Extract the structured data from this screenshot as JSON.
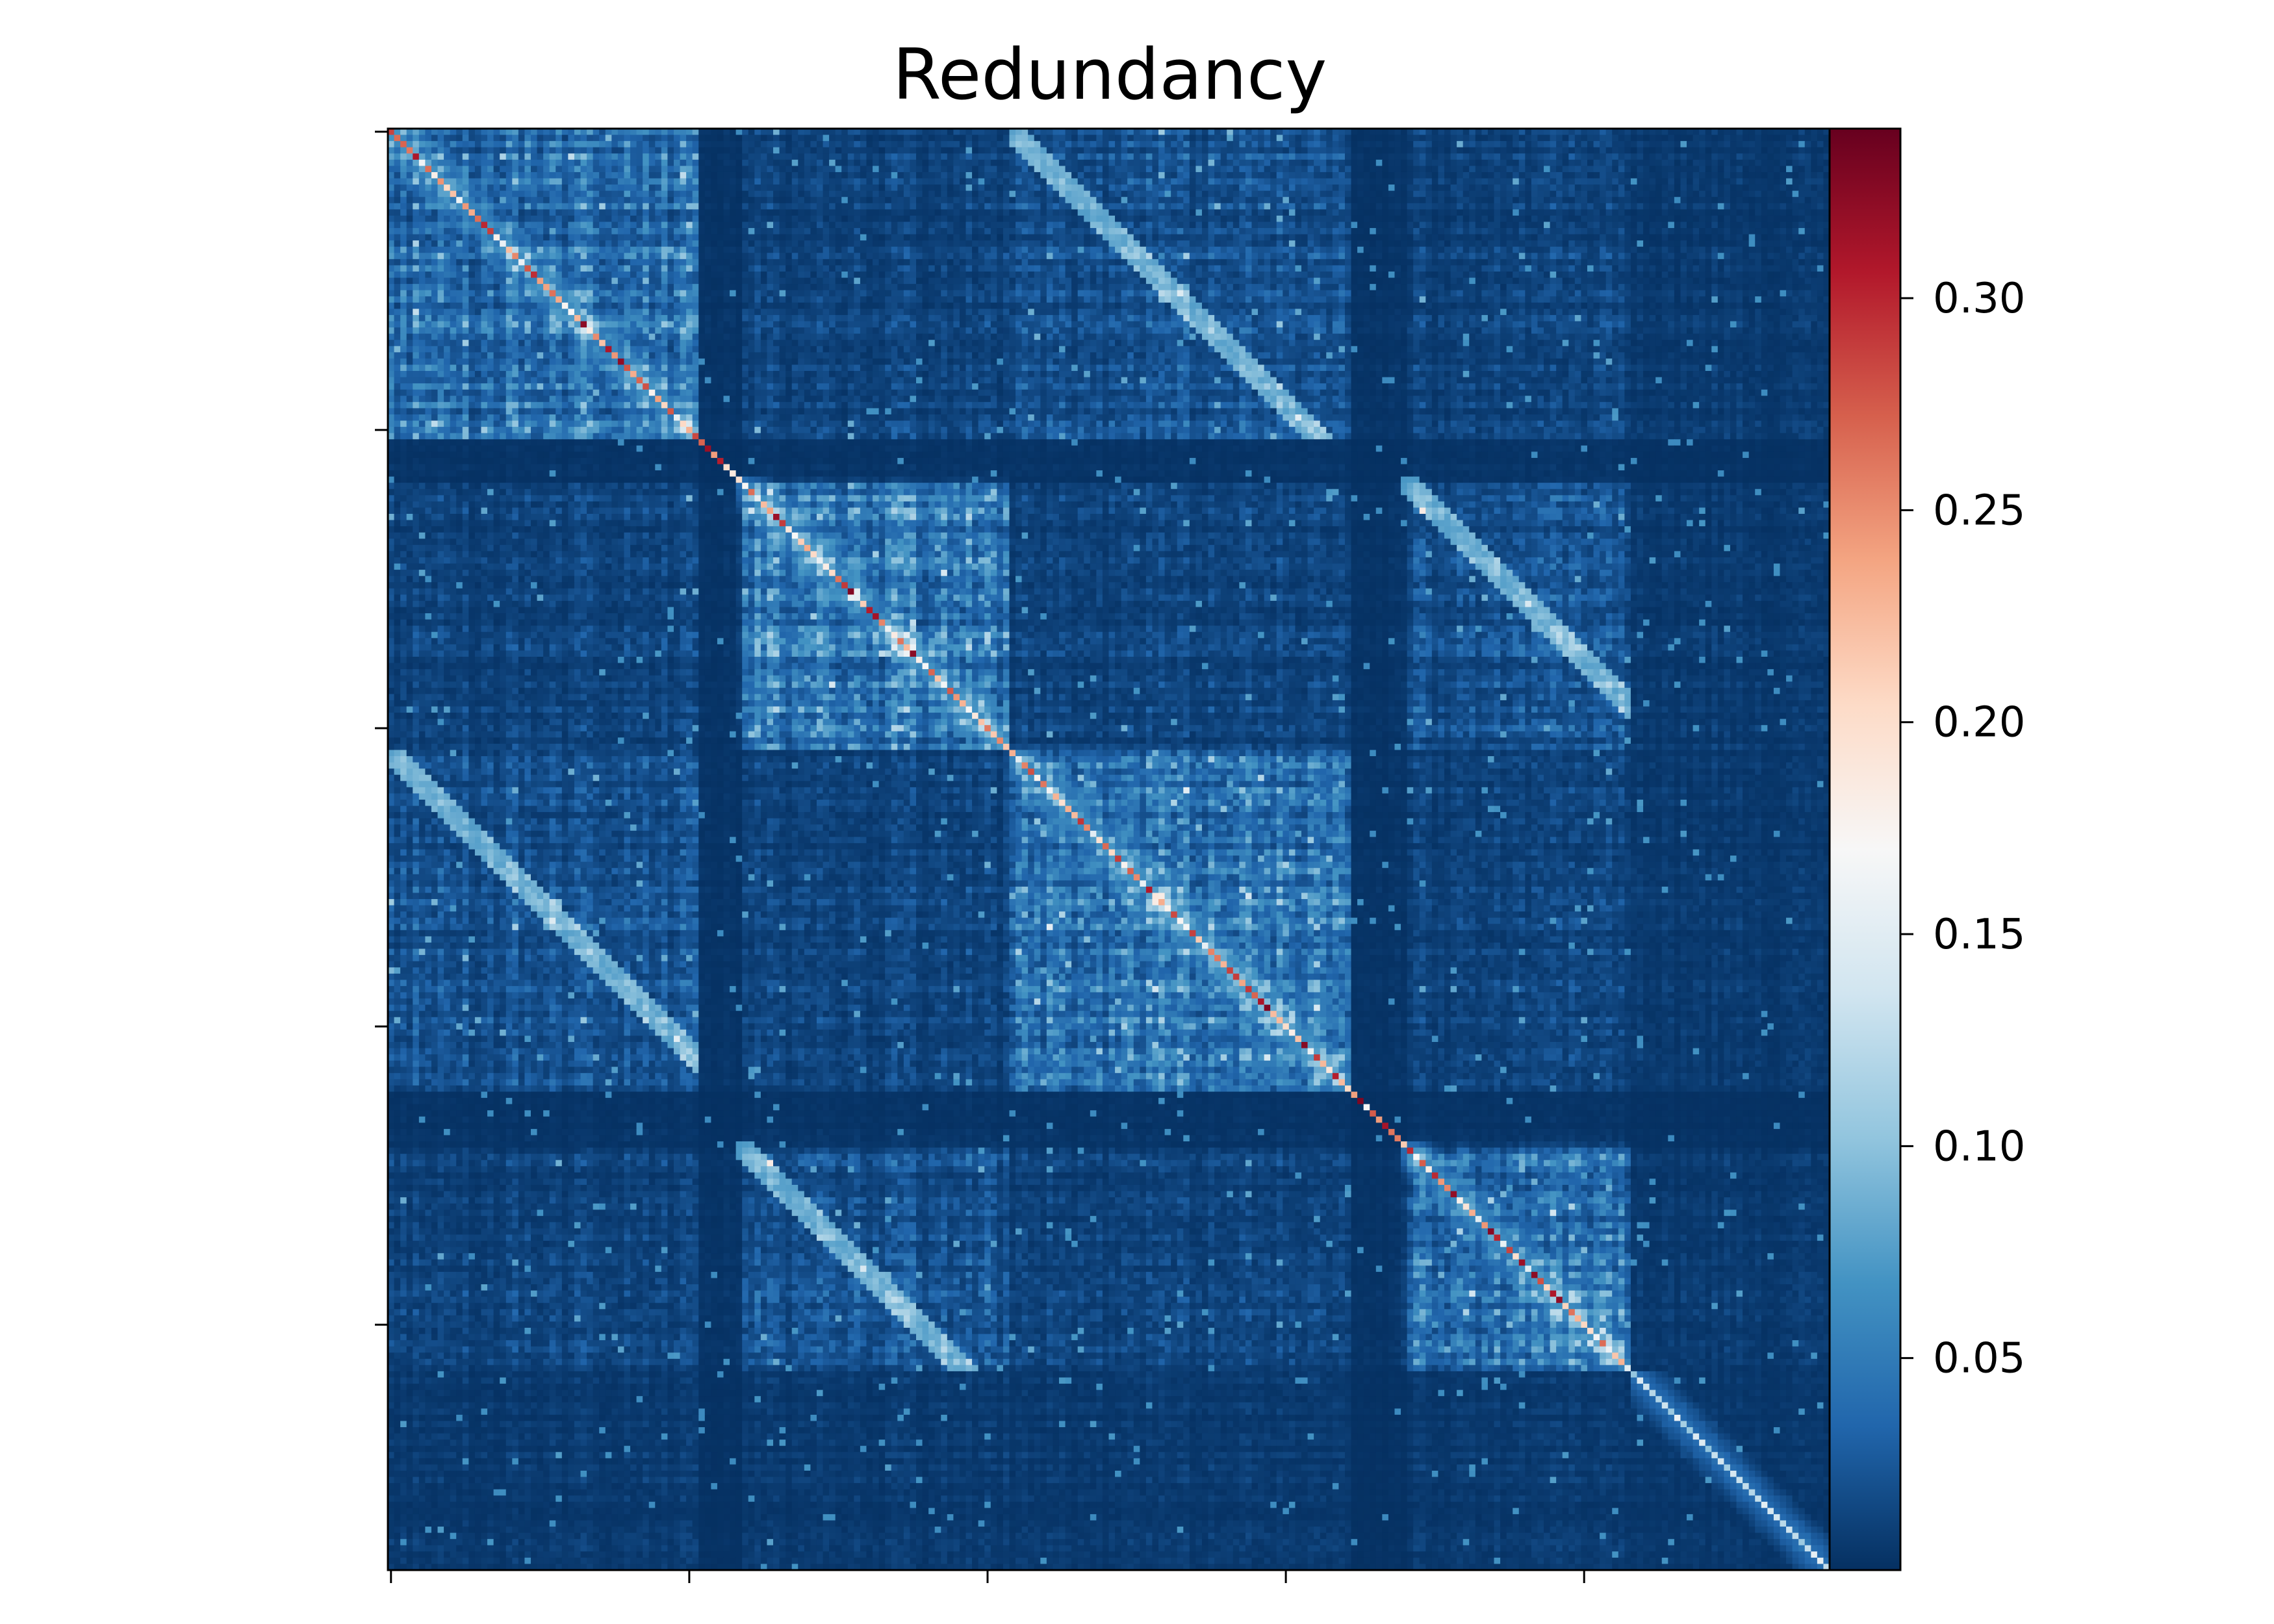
{
  "chart_data": {
    "type": "heatmap",
    "title": "Redundancy",
    "xlabel": "",
    "ylabel": "",
    "x_tick_labels_shown": false,
    "y_tick_labels_shown": false,
    "matrix_size": 232,
    "x_tick_count": 5,
    "y_tick_count": 5,
    "colormap": [
      "#053061",
      "#2166ac",
      "#4393c3",
      "#92c5de",
      "#d1e5f0",
      "#f7f7f7",
      "#fddbc7",
      "#f4a582",
      "#d6604d",
      "#b2182b",
      "#67001f"
    ],
    "value_range": [
      0.0,
      0.34
    ],
    "colorbar": {
      "ticks": [
        0.05,
        0.1,
        0.15,
        0.2,
        0.25,
        0.3
      ],
      "tick_labels": [
        "0.05",
        "0.10",
        "0.15",
        "0.20",
        "0.25",
        "0.30"
      ]
    },
    "blocks": [
      {
        "start": 0,
        "end": 50,
        "within_level": 0.08
      },
      {
        "start": 56,
        "end": 100,
        "within_level": 0.09
      },
      {
        "start": 100,
        "end": 155,
        "within_level": 0.085
      },
      {
        "start": 163,
        "end": 200,
        "within_level": 0.08
      },
      {
        "start": 200,
        "end": 232,
        "within_level": 0.035
      }
    ],
    "diagonal_range": [
      0.15,
      0.33
    ],
    "background_level": 0.02
  }
}
